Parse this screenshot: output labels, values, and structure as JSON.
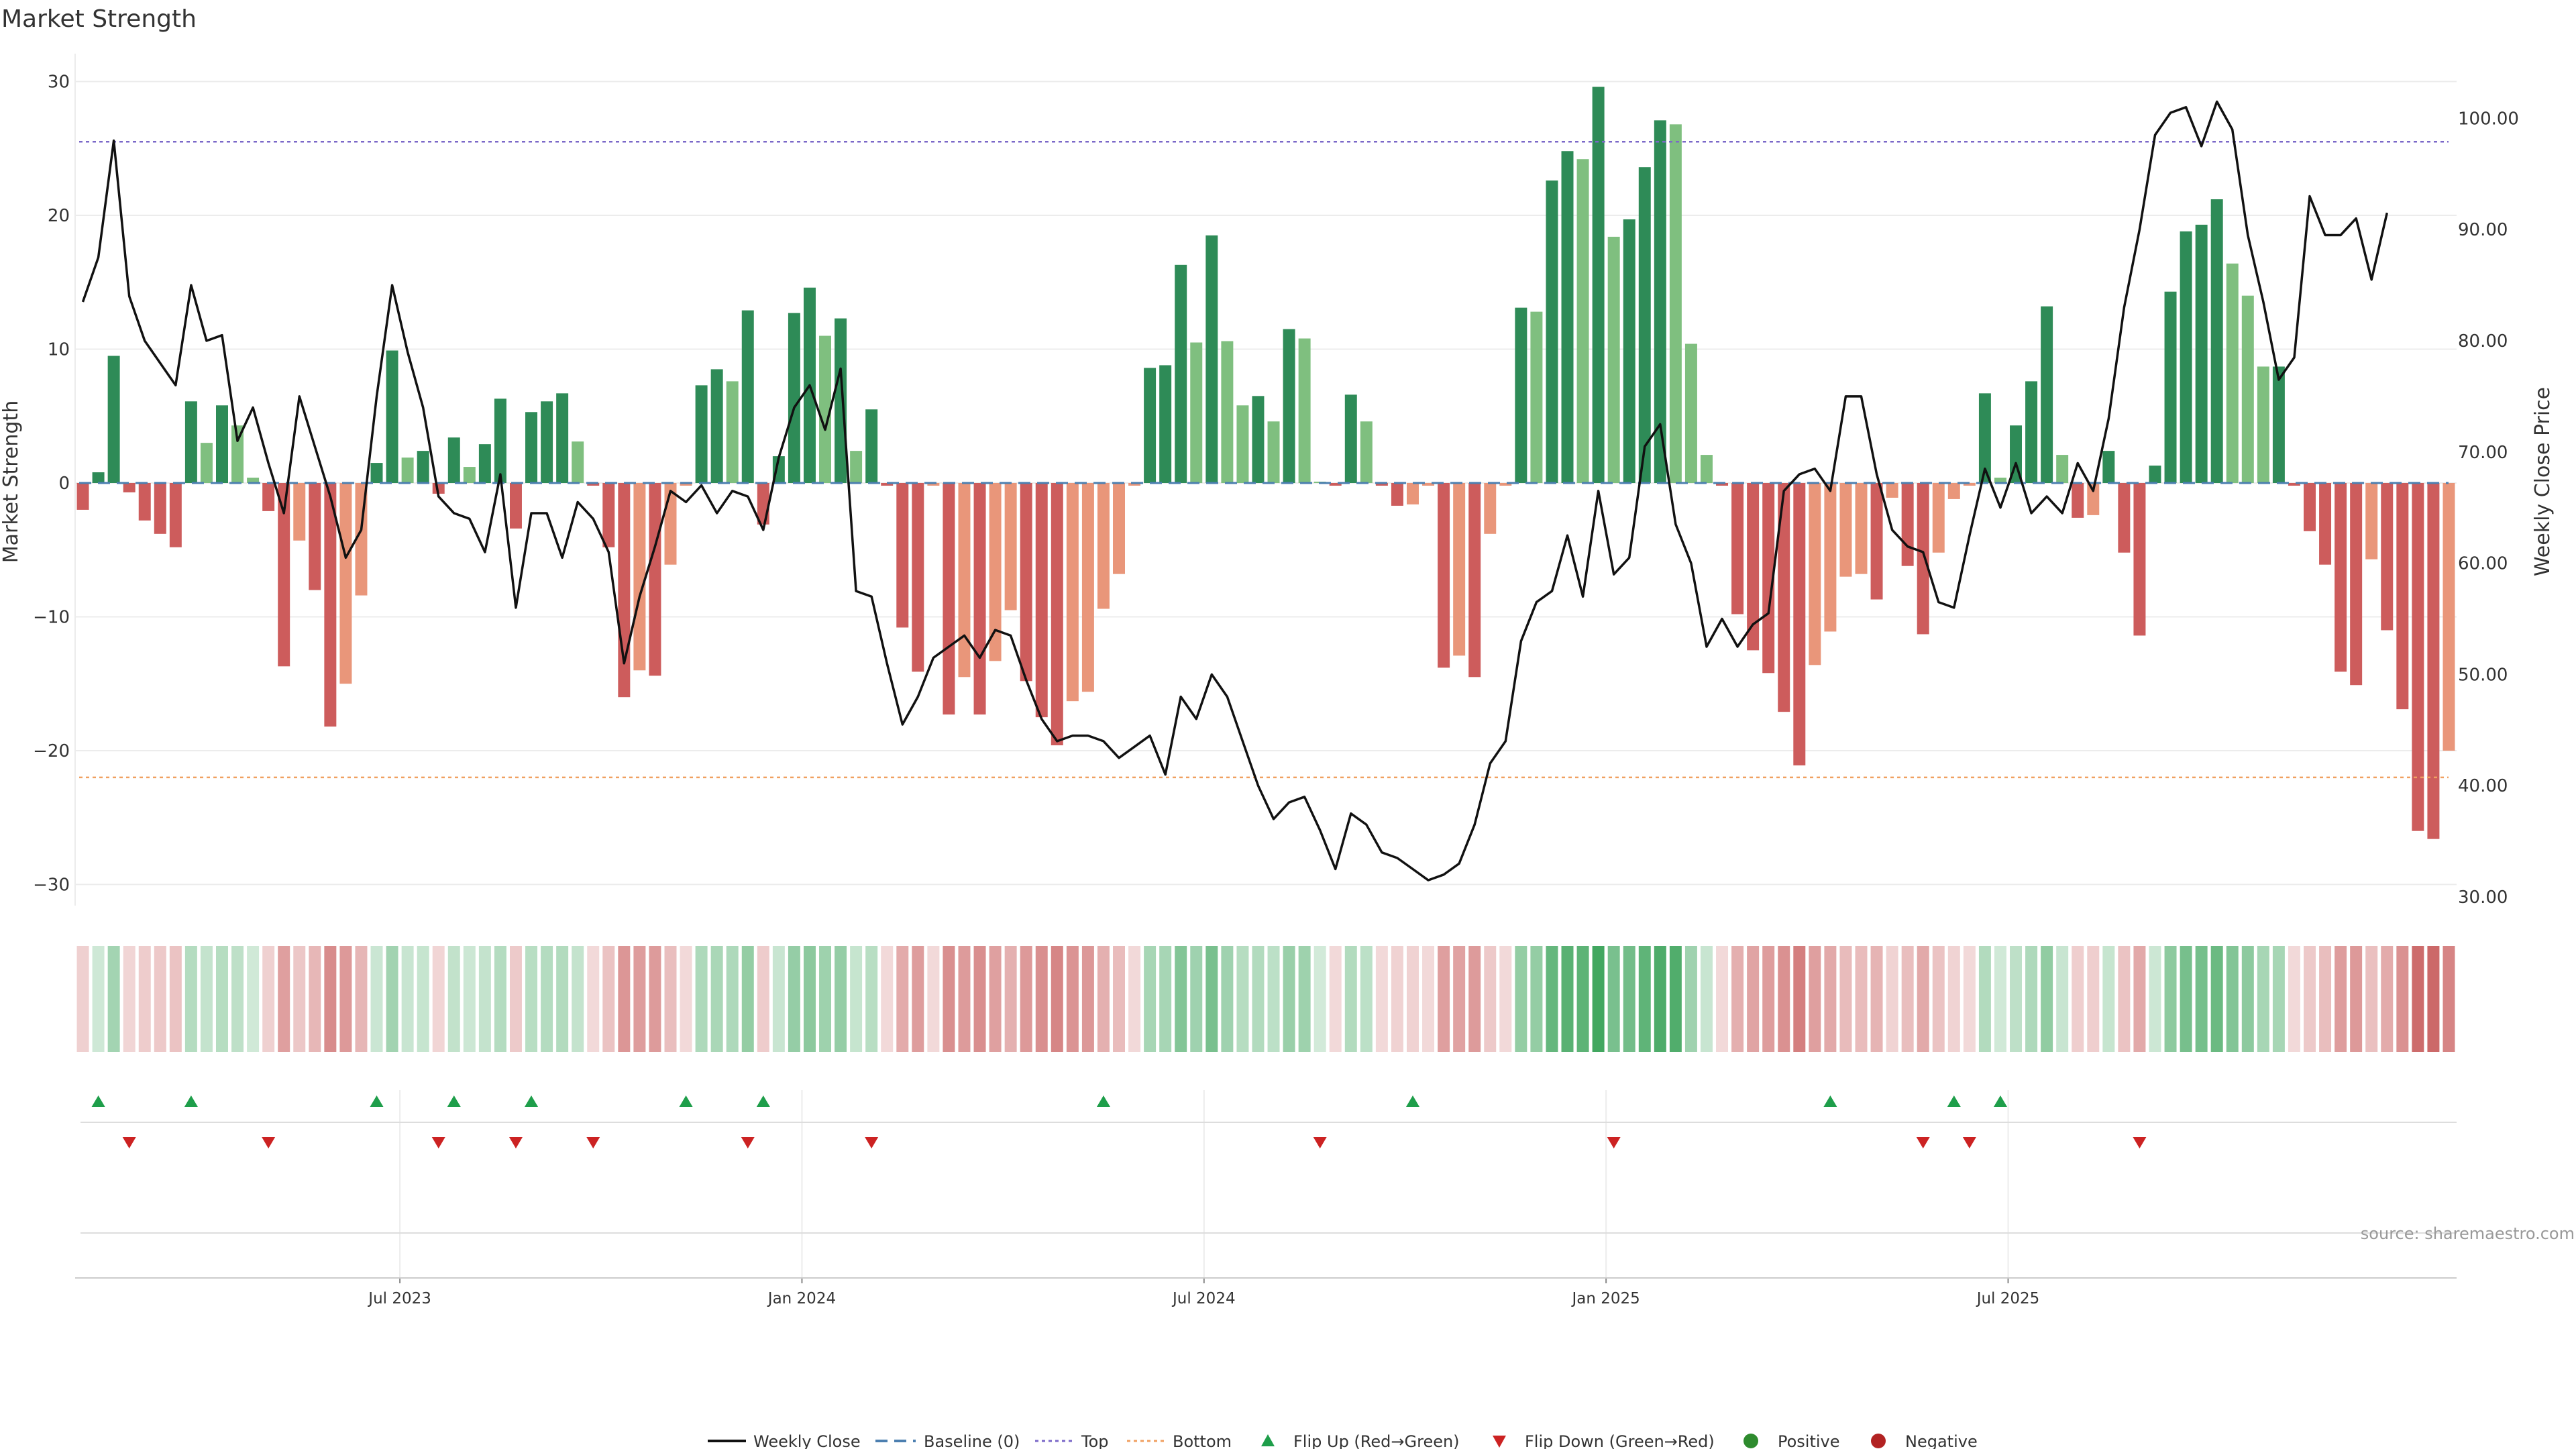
{
  "chart_data": {
    "type": "bar",
    "title": "Market Strength",
    "ylabel": "Market Strength",
    "y2label": "Weekly Close Price",
    "ylim": [
      -32,
      32
    ],
    "y2lim": [
      28.0,
      103.0
    ],
    "yticks": [
      "30",
      "20",
      "10",
      "0",
      "−10",
      "−20",
      "−30"
    ],
    "y2ticks": [
      "100.00",
      "90.00",
      "80.00",
      "70.00",
      "60.00",
      "50.00",
      "40.00",
      "30.00"
    ],
    "xticks": [
      "Jul 2023",
      "Jan 2024",
      "Jul 2024",
      "Jan 2025",
      "Jul 2025"
    ],
    "xtick_week_index": [
      21,
      47,
      73,
      99,
      125
    ],
    "top_line": 25.5,
    "bottom_line": -22,
    "baseline": 0,
    "grid": true,
    "legend_position": "bottom-center",
    "strength": [
      -2,
      0.8,
      9.5,
      -0.7,
      -2.8,
      -3.8,
      -4.8,
      6.1,
      3,
      5.8,
      4.3,
      0.4,
      -2.1,
      -13.7,
      -4.3,
      -8,
      -18.2,
      -15,
      -8.4,
      1.5,
      9.9,
      1.9,
      2.4,
      -0.8,
      3.4,
      1.2,
      2.9,
      6.3,
      -3.4,
      5.3,
      6.1,
      6.7,
      3.1,
      -0.2,
      -4.8,
      -16,
      -14,
      -14.4,
      -6.1,
      -0.2,
      7.3,
      8.5,
      7.6,
      12.9,
      -3.1,
      2,
      12.7,
      14.6,
      11,
      12.3,
      2.4,
      5.5,
      -0.2,
      -10.8,
      -14.1,
      -0.2,
      -17.3,
      -14.5,
      -17.3,
      -13.3,
      -9.5,
      -14.8,
      -17.5,
      -19.6,
      -16.3,
      -15.6,
      -9.4,
      -6.8,
      -0.2,
      8.6,
      8.8,
      16.3,
      10.5,
      18.5,
      10.6,
      5.8,
      6.5,
      4.6,
      11.5,
      10.8,
      0.1,
      -0.2,
      6.6,
      4.6,
      -0.2,
      -1.7,
      -1.6,
      -0.2,
      -13.8,
      -12.9,
      -14.5,
      -3.8,
      -0.2,
      13.1,
      12.8,
      22.6,
      24.8,
      24.2,
      29.6,
      18.4,
      19.7,
      23.6,
      27.1,
      26.8,
      10.4,
      2.1,
      -0.2,
      -9.8,
      -12.5,
      -14.2,
      -17.1,
      -21.1,
      -13.6,
      -11.1,
      -7,
      -6.8,
      -8.7,
      -1.1,
      -6.2,
      -11.3,
      -5.2,
      -1.2,
      -0.2,
      6.7,
      0.4,
      4.3,
      7.6,
      13.2,
      2.1,
      -2.6,
      -2.4,
      2.4,
      -5.2,
      -11.4,
      1.3,
      14.3,
      18.8,
      19.3,
      21.2,
      16.4,
      14,
      8.7,
      8.7,
      -0.2,
      -3.6,
      -6.1,
      -14.1,
      -15.1,
      -5.7,
      -11,
      -16.9,
      -26,
      -26.6,
      -20
    ],
    "weekly_close": [
      83.5,
      87.5,
      98,
      84,
      80,
      78,
      76,
      85,
      80,
      80.5,
      71,
      74,
      69,
      64.5,
      75,
      70.5,
      66,
      60.5,
      63,
      75,
      85,
      79,
      74,
      66,
      64.5,
      64,
      61,
      68,
      56,
      64.5,
      64.5,
      60.5,
      65.5,
      64,
      61,
      51,
      57,
      61.5,
      66.5,
      65.5,
      67,
      64.5,
      66.5,
      66,
      63,
      69.5,
      74,
      76,
      72,
      77.5,
      57.5,
      57,
      51,
      45.5,
      48,
      51.5,
      52.5,
      53.5,
      51.5,
      54,
      53.5,
      49.5,
      46,
      44,
      44.5,
      44.5,
      44,
      42.5,
      43.5,
      44.5,
      41,
      48,
      46,
      50,
      48,
      44,
      40,
      37,
      38.5,
      39,
      36,
      32.5,
      37.5,
      36.5,
      34,
      33.5,
      32.5,
      31.5,
      32,
      33,
      36.5,
      42,
      44,
      53,
      56.5,
      57.5,
      62.5,
      57,
      66.5,
      59,
      60.5,
      70.5,
      72.5,
      63.5,
      60,
      52.5,
      55,
      52.5,
      54.5,
      55.5,
      66.5,
      68,
      68.5,
      66.5,
      75,
      75,
      68,
      63,
      61.5,
      61,
      56.5,
      56,
      62.5,
      68.5,
      65,
      69,
      64.5,
      66,
      64.5,
      69,
      66.5,
      73,
      83,
      90,
      98.5,
      100.5,
      101,
      97.5,
      101.5,
      99,
      89.5,
      83.5,
      76.5,
      78.5,
      93,
      89.5,
      89.5,
      91,
      85.5,
      91.5
    ],
    "flip_up_weeks": [
      1,
      7,
      19,
      24,
      29,
      39,
      44,
      66,
      86,
      113,
      121,
      124
    ],
    "flip_down_weeks": [
      3,
      12,
      23,
      28,
      33,
      43,
      51,
      80,
      99,
      119,
      122,
      133
    ],
    "source": "source: sharemaestro.com",
    "legend": [
      {
        "label": "Weekly Close",
        "marker": "line"
      },
      {
        "label": "Baseline (0)",
        "marker": "dash"
      },
      {
        "label": "Top",
        "marker": "dotted"
      },
      {
        "label": "Bottom",
        "marker": "dotted"
      },
      {
        "label": "Flip Up (Red→Green)",
        "marker": "triangle-up"
      },
      {
        "label": "Flip Down (Green→Red)",
        "marker": "triangle-down"
      },
      {
        "label": "Positive",
        "marker": "circle"
      },
      {
        "label": "Negative",
        "marker": "circle"
      }
    ]
  },
  "colors": {
    "strong_positive": "#2e8b57",
    "weak_positive": "#7fbf7f",
    "strong_negative": "#cd5c5c",
    "weak_negative": "#e9967a",
    "price_line": "#111111",
    "baseline": "#4c7fb0",
    "top_line": "#7b68c8",
    "bottom_line": "#f0a060",
    "flip_up": "#1e9e4a",
    "flip_down": "#cc2222",
    "positive": "#2e8b2e",
    "negative": "#b22222"
  }
}
